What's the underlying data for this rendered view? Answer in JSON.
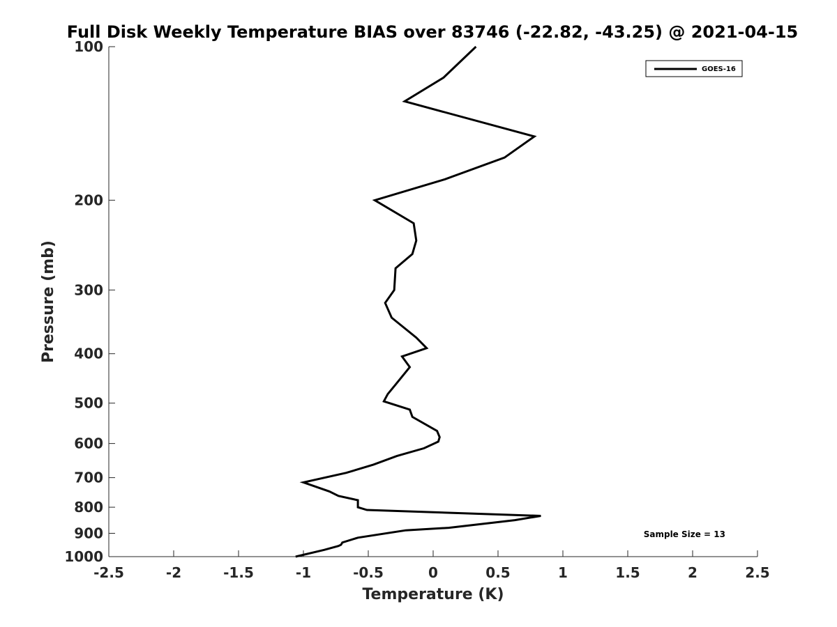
{
  "chart_data": {
    "type": "line",
    "title": "Full Disk Weekly Temperature BIAS over 83746 (-22.82, -43.25) @ 2021-04-15",
    "xlabel": "Temperature (K)",
    "ylabel": "Pressure (mb)",
    "xlim": [
      -2.5,
      2.5
    ],
    "ylim": [
      100,
      1000
    ],
    "y_scale": "log",
    "y_reversed": true,
    "x_ticks": [
      "-2.5",
      "-2",
      "-1.5",
      "-1",
      "-0.5",
      "0",
      "0.5",
      "1",
      "1.5",
      "2",
      "2.5"
    ],
    "x_tick_values": [
      -2.5,
      -2,
      -1.5,
      -1,
      -0.5,
      0,
      0.5,
      1,
      1.5,
      2,
      2.5
    ],
    "y_ticks": [
      "100",
      "200",
      "300",
      "400",
      "500",
      "600",
      "700",
      "800",
      "900",
      "1000"
    ],
    "y_tick_values": [
      100,
      200,
      300,
      400,
      500,
      600,
      700,
      800,
      900,
      1000
    ],
    "grid": false,
    "legend_position": "top-right",
    "series": [
      {
        "name": "GOES-16",
        "color": "#000000",
        "x": [
          0.33,
          0.08,
          -0.22,
          0.78,
          0.55,
          0.09,
          -0.45,
          -0.15,
          -0.13,
          -0.16,
          -0.29,
          -0.3,
          -0.37,
          -0.32,
          -0.13,
          -0.05,
          -0.24,
          -0.18,
          -0.29,
          -0.35,
          -0.38,
          -0.18,
          -0.16,
          0.03,
          0.05,
          0.04,
          -0.07,
          -0.28,
          -0.46,
          -0.67,
          -1.0,
          -0.8,
          -0.73,
          -0.58,
          -0.58,
          -0.51,
          0.83,
          0.63,
          0.12,
          -0.21,
          -0.58,
          -0.7,
          -0.71,
          -0.73,
          -0.84,
          -1.06
        ],
        "y": [
          100,
          115,
          128,
          150,
          165,
          182,
          200,
          222,
          240,
          255,
          272,
          300,
          318,
          340,
          372,
          390,
          405,
          425,
          460,
          480,
          496,
          515,
          532,
          567,
          583,
          595,
          613,
          635,
          660,
          685,
          715,
          745,
          760,
          775,
          800,
          810,
          832,
          848,
          878,
          888,
          918,
          938,
          948,
          953,
          970,
          1000
        ]
      }
    ],
    "annotations": [
      "Sample Size = 13"
    ]
  }
}
